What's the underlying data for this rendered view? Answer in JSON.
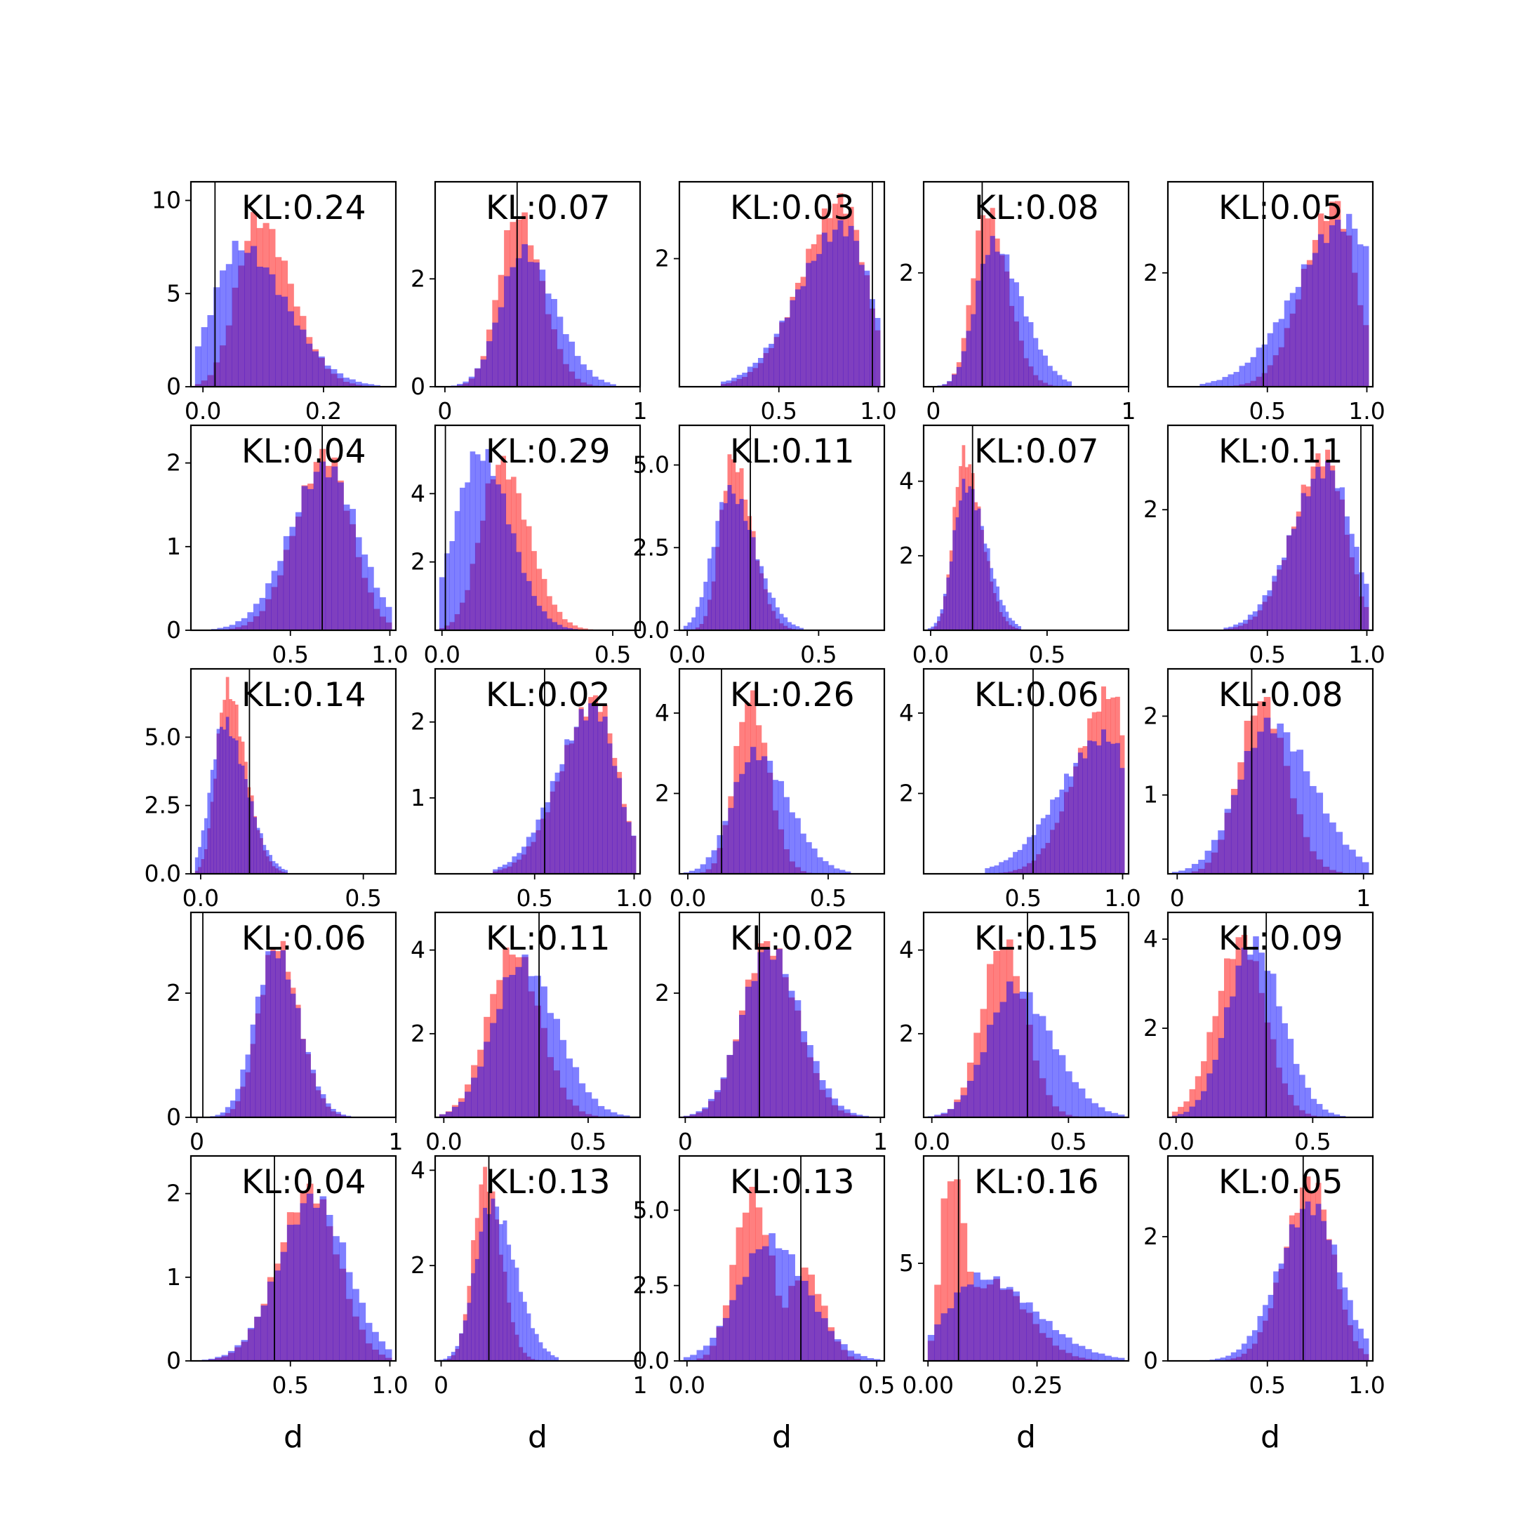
{
  "colors": {
    "red": "#ff0000",
    "blue": "#0000ff",
    "overlap": "#8040c0",
    "frame": "#000000"
  },
  "chart_data": [
    {
      "type": "histogram",
      "title": "KL:0.24",
      "xlim": [
        -0.02,
        0.32
      ],
      "ylim": [
        0,
        11
      ],
      "xticks": [
        0.0,
        0.2
      ],
      "xtick_labels": [
        "0.0",
        "0.2"
      ],
      "yticks": [
        0,
        5,
        10
      ],
      "ytick_labels": [
        "0",
        "5",
        "10"
      ],
      "vline": 0.02,
      "red": {
        "mu": 0.09,
        "sd": 0.045,
        "peak": 9.0,
        "skew": 0.7
      },
      "blue": {
        "mu": 0.06,
        "sd": 0.06,
        "peak": 7.5,
        "skew": 0.8
      },
      "xlabel": ""
    },
    {
      "type": "histogram",
      "title": "KL:0.07",
      "xlim": [
        -0.05,
        1.0
      ],
      "ylim": [
        0,
        3.8
      ],
      "xticks": [
        0,
        1
      ],
      "xtick_labels": [
        "0",
        "1"
      ],
      "yticks": [
        0,
        2
      ],
      "ytick_labels": [
        "0",
        "2"
      ],
      "vline": 0.37,
      "red": {
        "mu": 0.37,
        "sd": 0.11,
        "peak": 3.2,
        "skew": 0.4
      },
      "blue": {
        "mu": 0.4,
        "sd": 0.14,
        "peak": 2.5,
        "skew": 0.5
      },
      "xlabel": ""
    },
    {
      "type": "histogram",
      "title": "KL:0.03",
      "xlim": [
        0.0,
        1.03
      ],
      "ylim": [
        0,
        3.2
      ],
      "xticks": [
        0.5,
        1.0
      ],
      "xtick_labels": [
        "0.5",
        "1.0"
      ],
      "yticks": [
        2
      ],
      "ytick_labels": [
        "2"
      ],
      "vline": 0.97,
      "red": {
        "mu": 0.82,
        "sd": 0.16,
        "peak": 2.9,
        "skew": -0.8
      },
      "blue": {
        "mu": 0.83,
        "sd": 0.18,
        "peak": 2.5,
        "skew": -0.8
      },
      "xlabel": ""
    },
    {
      "type": "histogram",
      "title": "KL:0.08",
      "xlim": [
        -0.05,
        1.0
      ],
      "ylim": [
        0,
        3.6
      ],
      "xticks": [
        0,
        1
      ],
      "xtick_labels": [
        "0",
        "1"
      ],
      "yticks": [
        2
      ],
      "ytick_labels": [
        "2"
      ],
      "vline": 0.25,
      "red": {
        "mu": 0.27,
        "sd": 0.09,
        "peak": 3.1,
        "skew": 0.6
      },
      "blue": {
        "mu": 0.3,
        "sd": 0.12,
        "peak": 2.5,
        "skew": 0.8
      },
      "xlabel": ""
    },
    {
      "type": "histogram",
      "title": "KL:0.05",
      "xlim": [
        0.0,
        1.03
      ],
      "ylim": [
        0,
        3.6
      ],
      "xticks": [
        0.5,
        1.0
      ],
      "xtick_labels": [
        "0.5",
        "1.0"
      ],
      "yticks": [
        2
      ],
      "ytick_labels": [
        "2"
      ],
      "vline": 0.48,
      "red": {
        "mu": 0.84,
        "sd": 0.13,
        "peak": 3.2,
        "skew": -0.6
      },
      "blue": {
        "mu": 0.9,
        "sd": 0.2,
        "peak": 2.9,
        "skew": -0.8
      },
      "xlabel": ""
    },
    {
      "type": "histogram",
      "title": "KL:0.04",
      "xlim": [
        0.0,
        1.03
      ],
      "ylim": [
        0,
        2.45
      ],
      "xticks": [
        0.5,
        1.0
      ],
      "xtick_labels": [
        "0.5",
        "1.0"
      ],
      "yticks": [
        0,
        1,
        2
      ],
      "ytick_labels": [
        "0",
        "1",
        "2"
      ],
      "vline": 0.66,
      "red": {
        "mu": 0.68,
        "sd": 0.14,
        "peak": 2.1,
        "skew": -0.3
      },
      "blue": {
        "mu": 0.68,
        "sd": 0.17,
        "peak": 1.95,
        "skew": -0.2
      },
      "xlabel": ""
    },
    {
      "type": "histogram",
      "title": "KL:0.29",
      "xlim": [
        -0.02,
        0.58
      ],
      "ylim": [
        0,
        6.0
      ],
      "xticks": [
        0.0,
        0.5
      ],
      "xtick_labels": [
        "0.0",
        "0.5"
      ],
      "yticks": [
        2,
        4
      ],
      "ytick_labels": [
        "2",
        "4"
      ],
      "vline": 0.01,
      "red": {
        "mu": 0.17,
        "sd": 0.07,
        "peak": 4.9,
        "skew": 0.5
      },
      "blue": {
        "mu": 0.11,
        "sd": 0.08,
        "peak": 5.2,
        "skew": 0.3
      },
      "xlabel": ""
    },
    {
      "type": "histogram",
      "title": "KL:0.11",
      "xlim": [
        -0.03,
        0.75
      ],
      "ylim": [
        0,
        6.2
      ],
      "xticks": [
        0.0,
        0.5
      ],
      "xtick_labels": [
        "0.0",
        "0.5"
      ],
      "yticks": [
        0.0,
        2.5,
        5.0
      ],
      "ytick_labels": [
        "0.0",
        "2.5",
        "5.0"
      ],
      "vline": 0.24,
      "red": {
        "mu": 0.17,
        "sd": 0.06,
        "peak": 5.2,
        "skew": 0.7
      },
      "blue": {
        "mu": 0.16,
        "sd": 0.08,
        "peak": 4.2,
        "skew": 0.6
      },
      "xlabel": ""
    },
    {
      "type": "histogram",
      "title": "KL:0.07",
      "xlim": [
        -0.03,
        0.85
      ],
      "ylim": [
        0,
        5.5
      ],
      "xticks": [
        0.0,
        0.5
      ],
      "xtick_labels": [
        "0.0",
        "0.5"
      ],
      "yticks": [
        2,
        4
      ],
      "ytick_labels": [
        "2",
        "4"
      ],
      "vline": 0.18,
      "red": {
        "mu": 0.14,
        "sd": 0.06,
        "peak": 4.7,
        "skew": 0.8
      },
      "blue": {
        "mu": 0.15,
        "sd": 0.07,
        "peak": 3.9,
        "skew": 0.7
      },
      "xlabel": ""
    },
    {
      "type": "histogram",
      "title": "KL:0.11",
      "xlim": [
        0.0,
        1.03
      ],
      "ylim": [
        0,
        3.4
      ],
      "xticks": [
        0.5,
        1.0
      ],
      "xtick_labels": [
        "0.5",
        "1.0"
      ],
      "yticks": [
        2
      ],
      "ytick_labels": [
        "2"
      ],
      "vline": 0.97,
      "red": {
        "mu": 0.79,
        "sd": 0.13,
        "peak": 2.9,
        "skew": -0.6
      },
      "blue": {
        "mu": 0.8,
        "sd": 0.15,
        "peak": 2.7,
        "skew": -0.5
      },
      "xlabel": ""
    },
    {
      "type": "histogram",
      "title": "KL:0.14",
      "xlim": [
        -0.03,
        0.6
      ],
      "ylim": [
        0,
        7.5
      ],
      "xticks": [
        0.0,
        0.5
      ],
      "xtick_labels": [
        "0.0",
        "0.5"
      ],
      "yticks": [
        0.0,
        2.5,
        5.0
      ],
      "ytick_labels": [
        "0.0",
        "2.5",
        "5.0"
      ],
      "vline": 0.15,
      "red": {
        "mu": 0.08,
        "sd": 0.045,
        "peak": 6.8,
        "skew": 0.8
      },
      "blue": {
        "mu": 0.07,
        "sd": 0.055,
        "peak": 5.5,
        "skew": 0.8
      },
      "xlabel": ""
    },
    {
      "type": "histogram",
      "title": "KL:0.02",
      "xlim": [
        0.0,
        1.03
      ],
      "ylim": [
        0,
        2.7
      ],
      "xticks": [
        0.5,
        1.0
      ],
      "xtick_labels": [
        "0.5",
        "1.0"
      ],
      "yticks": [
        1,
        2
      ],
      "ytick_labels": [
        "1",
        "2"
      ],
      "vline": 0.55,
      "red": {
        "mu": 0.81,
        "sd": 0.14,
        "peak": 2.3,
        "skew": -0.7
      },
      "blue": {
        "mu": 0.8,
        "sd": 0.15,
        "peak": 2.2,
        "skew": -0.7
      },
      "xlabel": ""
    },
    {
      "type": "histogram",
      "title": "KL:0.26",
      "xlim": [
        -0.03,
        0.7
      ],
      "ylim": [
        0,
        5.1
      ],
      "xticks": [
        0.0,
        0.5
      ],
      "xtick_labels": [
        "0.0",
        "0.5"
      ],
      "yticks": [
        2,
        4
      ],
      "ytick_labels": [
        "2",
        "4"
      ],
      "vline": 0.12,
      "red": {
        "mu": 0.22,
        "sd": 0.06,
        "peak": 4.4,
        "skew": 0.3
      },
      "blue": {
        "mu": 0.24,
        "sd": 0.1,
        "peak": 3.0,
        "skew": 0.5
      },
      "xlabel": ""
    },
    {
      "type": "histogram",
      "title": "KL:0.06",
      "xlim": [
        0.0,
        1.03
      ],
      "ylim": [
        0,
        5.1
      ],
      "xticks": [
        0.5,
        1.0
      ],
      "xtick_labels": [
        "0.5",
        "1.0"
      ],
      "yticks": [
        2,
        4
      ],
      "ytick_labels": [
        "2",
        "4"
      ],
      "vline": 0.55,
      "red": {
        "mu": 0.94,
        "sd": 0.13,
        "peak": 4.5,
        "skew": -0.9
      },
      "blue": {
        "mu": 0.92,
        "sd": 0.18,
        "peak": 3.4,
        "skew": -0.9
      },
      "xlabel": ""
    },
    {
      "type": "histogram",
      "title": "KL:0.08",
      "xlim": [
        -0.05,
        1.05
      ],
      "ylim": [
        0,
        2.6
      ],
      "xticks": [
        0,
        1
      ],
      "xtick_labels": [
        "0",
        "1"
      ],
      "yticks": [
        1,
        2
      ],
      "ytick_labels": [
        "1",
        "2"
      ],
      "vline": 0.4,
      "red": {
        "mu": 0.45,
        "sd": 0.13,
        "peak": 2.2,
        "skew": 0.2
      },
      "blue": {
        "mu": 0.5,
        "sd": 0.2,
        "peak": 1.9,
        "skew": 0.4
      },
      "xlabel": ""
    },
    {
      "type": "histogram",
      "title": "KL:0.06",
      "xlim": [
        -0.03,
        1.0
      ],
      "ylim": [
        0,
        3.3
      ],
      "xticks": [
        0,
        1
      ],
      "xtick_labels": [
        "0",
        "1"
      ],
      "yticks": [
        0,
        2
      ],
      "ytick_labels": [
        "0",
        "2"
      ],
      "vline": 0.03,
      "red": {
        "mu": 0.4,
        "sd": 0.1,
        "peak": 2.8,
        "skew": 0.3
      },
      "blue": {
        "mu": 0.39,
        "sd": 0.11,
        "peak": 2.7,
        "skew": 0.3
      },
      "xlabel": ""
    },
    {
      "type": "histogram",
      "title": "KL:0.11",
      "xlim": [
        -0.03,
        0.68
      ],
      "ylim": [
        0,
        4.9
      ],
      "xticks": [
        0.0,
        0.5
      ],
      "xtick_labels": [
        "0.0",
        "0.5"
      ],
      "yticks": [
        2,
        4
      ],
      "ytick_labels": [
        "2",
        "4"
      ],
      "vline": 0.33,
      "red": {
        "mu": 0.24,
        "sd": 0.09,
        "peak": 4.0,
        "skew": 0.1
      },
      "blue": {
        "mu": 0.27,
        "sd": 0.11,
        "peak": 3.7,
        "skew": 0.3
      },
      "xlabel": ""
    },
    {
      "type": "histogram",
      "title": "KL:0.02",
      "xlim": [
        -0.03,
        1.02
      ],
      "ylim": [
        0,
        3.3
      ],
      "xticks": [
        0,
        1
      ],
      "xtick_labels": [
        "0",
        "1"
      ],
      "yticks": [
        2
      ],
      "ytick_labels": [
        "2"
      ],
      "vline": 0.38,
      "red": {
        "mu": 0.42,
        "sd": 0.14,
        "peak": 2.8,
        "skew": 0.2
      },
      "blue": {
        "mu": 0.43,
        "sd": 0.15,
        "peak": 2.7,
        "skew": 0.2
      },
      "xlabel": ""
    },
    {
      "type": "histogram",
      "title": "KL:0.15",
      "xlim": [
        -0.03,
        0.72
      ],
      "ylim": [
        0,
        4.9
      ],
      "xticks": [
        0.0,
        0.5
      ],
      "xtick_labels": [
        "0.0",
        "0.5"
      ],
      "yticks": [
        2,
        4
      ],
      "ytick_labels": [
        "2",
        "4"
      ],
      "vline": 0.35,
      "red": {
        "mu": 0.26,
        "sd": 0.08,
        "peak": 4.2,
        "skew": 0.1
      },
      "blue": {
        "mu": 0.3,
        "sd": 0.12,
        "peak": 3.1,
        "skew": 0.5
      },
      "xlabel": ""
    },
    {
      "type": "histogram",
      "title": "KL:0.09",
      "xlim": [
        -0.03,
        0.72
      ],
      "ylim": [
        0,
        4.6
      ],
      "xticks": [
        0.0,
        0.5
      ],
      "xtick_labels": [
        "0.0",
        "0.5"
      ],
      "yticks": [
        2,
        4
      ],
      "ytick_labels": [
        "2",
        "4"
      ],
      "vline": 0.33,
      "red": {
        "mu": 0.24,
        "sd": 0.09,
        "peak": 4.0,
        "skew": -0.1
      },
      "blue": {
        "mu": 0.28,
        "sd": 0.1,
        "peak": 3.9,
        "skew": 0.2
      },
      "xlabel": ""
    },
    {
      "type": "histogram",
      "title": "KL:0.04",
      "xlim": [
        0.0,
        1.03
      ],
      "ylim": [
        0,
        2.45
      ],
      "xticks": [
        0.5,
        1.0
      ],
      "xtick_labels": [
        "0.5",
        "1.0"
      ],
      "yticks": [
        0,
        1,
        2
      ],
      "ytick_labels": [
        "0",
        "1",
        "2"
      ],
      "vline": 0.42,
      "red": {
        "mu": 0.6,
        "sd": 0.15,
        "peak": 2.05,
        "skew": -0.2
      },
      "blue": {
        "mu": 0.62,
        "sd": 0.17,
        "peak": 1.95,
        "skew": -0.1
      },
      "xlabel": "d"
    },
    {
      "type": "histogram",
      "title": "KL:0.13",
      "xlim": [
        -0.03,
        1.0
      ],
      "ylim": [
        0,
        4.3
      ],
      "xticks": [
        0,
        1
      ],
      "xtick_labels": [
        "0",
        "1"
      ],
      "yticks": [
        2,
        4
      ],
      "ytick_labels": [
        "2",
        "4"
      ],
      "vline": 0.24,
      "red": {
        "mu": 0.22,
        "sd": 0.07,
        "peak": 3.9,
        "skew": 0.4
      },
      "blue": {
        "mu": 0.25,
        "sd": 0.1,
        "peak": 3.3,
        "skew": 0.6
      },
      "xlabel": "d"
    },
    {
      "type": "histogram",
      "title": "KL:0.13",
      "xlim": [
        -0.02,
        0.52
      ],
      "ylim": [
        0,
        6.8
      ],
      "xticks": [
        0.0,
        0.5
      ],
      "xtick_labels": [
        "0.0",
        "0.5"
      ],
      "yticks": [
        0.0,
        2.5,
        5.0
      ],
      "ytick_labels": [
        "0.0",
        "2.5",
        "5.0"
      ],
      "vline": 0.3,
      "red": {
        "mu": 0.17,
        "sd": 0.05,
        "peak": 5.5,
        "skew": 0.2,
        "mu2": 0.31,
        "sd2": 0.05,
        "peak2": 3.0
      },
      "blue": {
        "mu": 0.22,
        "sd": 0.09,
        "peak": 4.0,
        "skew": 0.2
      },
      "xlabel": "d"
    },
    {
      "type": "histogram",
      "title": "KL:0.16",
      "xlim": [
        -0.01,
        0.46
      ],
      "ylim": [
        0,
        10.5
      ],
      "xticks": [
        0.0,
        0.25
      ],
      "xtick_labels": [
        "0.00",
        "0.25"
      ],
      "yticks": [
        5
      ],
      "ytick_labels": [
        "5"
      ],
      "vline": 0.07,
      "red": {
        "mu": 0.05,
        "sd": 0.03,
        "peak": 9.8,
        "skew": 0.9,
        "mu2": 0.15,
        "sd2": 0.08,
        "peak2": 4.0
      },
      "blue": {
        "mu": 0.12,
        "sd": 0.1,
        "peak": 4.3,
        "skew": 0.7
      },
      "xlabel": "d"
    },
    {
      "type": "histogram",
      "title": "KL:0.05",
      "xlim": [
        0.0,
        1.03
      ],
      "ylim": [
        0,
        3.3
      ],
      "xticks": [
        0.5,
        1.0
      ],
      "xtick_labels": [
        "0.5",
        "1.0"
      ],
      "yticks": [
        0,
        2
      ],
      "ytick_labels": [
        "0",
        "2"
      ],
      "vline": 0.68,
      "red": {
        "mu": 0.72,
        "sd": 0.12,
        "peak": 2.9,
        "skew": -0.3
      },
      "blue": {
        "mu": 0.72,
        "sd": 0.15,
        "peak": 2.5,
        "skew": -0.2
      },
      "xlabel": "d"
    }
  ]
}
